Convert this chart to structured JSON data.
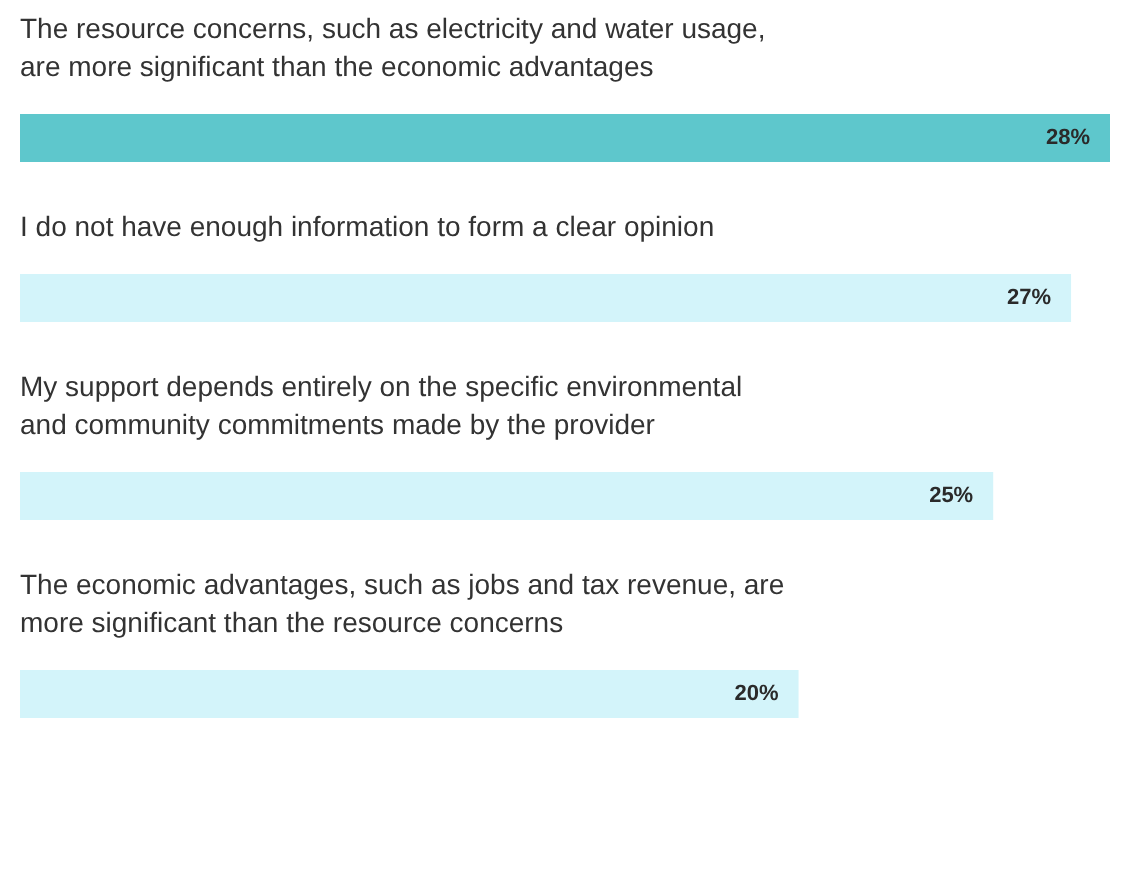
{
  "chart_data": {
    "type": "bar",
    "orientation": "horizontal",
    "categories": [
      "The resource concerns, such as electricity and water usage, are more significant than the economic advantages",
      "I do not have enough information to form a clear opinion",
      "My support depends entirely on the specific environmental and community commitments made by the provider",
      "The economic advantages, such as jobs and tax revenue, are more significant than the resource concerns"
    ],
    "values": [
      28,
      27,
      25,
      20
    ],
    "value_labels": [
      "28%",
      "27%",
      "25%",
      "20%"
    ],
    "colors": [
      "#5ec7cc",
      "#d3f4fa",
      "#d3f4fa",
      "#d3f4fa"
    ]
  }
}
